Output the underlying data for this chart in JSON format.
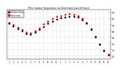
{
  "title": "Milw. Outdoor Temperature (vs) Heat Index (Last 24 Hours)",
  "legend_temp": "Outdoor Temp",
  "legend_hi": "Heat Index",
  "x_labels": [
    "1",
    "2",
    "3",
    "4",
    "5",
    "6",
    "7",
    "8",
    "9",
    "10",
    "11",
    "12",
    "1",
    "2",
    "3",
    "4",
    "5",
    "6",
    "7",
    "8",
    "9",
    "10",
    "11",
    "12"
  ],
  "hours": [
    0,
    1,
    2,
    3,
    4,
    5,
    6,
    7,
    8,
    9,
    10,
    11,
    12,
    13,
    14,
    15,
    16,
    17,
    18,
    19,
    20,
    21,
    22,
    23
  ],
  "temp": [
    72,
    68,
    64,
    60,
    56,
    55,
    58,
    62,
    67,
    72,
    76,
    79,
    81,
    82,
    83,
    83,
    82,
    78,
    72,
    62,
    50,
    38,
    28,
    22
  ],
  "heat_index": [
    74,
    70,
    66,
    62,
    58,
    57,
    60,
    65,
    71,
    76,
    80,
    83,
    85,
    87,
    88,
    87,
    85,
    80,
    74,
    63,
    51,
    39,
    29,
    23
  ],
  "temp_color": "#000000",
  "heat_color": "#ff0000",
  "bg_color": "#ffffff",
  "plot_bg": "#ffffff",
  "ylim_min": 15,
  "ylim_max": 95,
  "ytick_vals": [
    20,
    30,
    40,
    50,
    60,
    70,
    80,
    90
  ],
  "ytick_labels": [
    "20",
    "30",
    "40",
    "50",
    "60",
    "70",
    "80",
    "90"
  ],
  "grid_color": "#aaaaaa"
}
